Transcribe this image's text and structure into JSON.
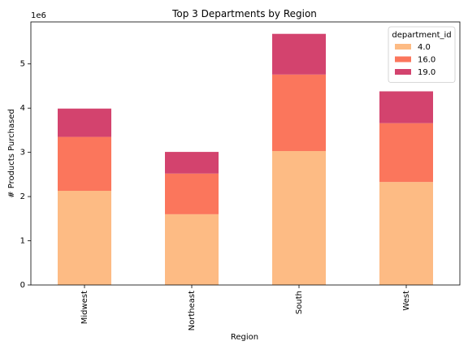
{
  "chart_data": {
    "type": "bar",
    "stacked": true,
    "title": "Top 3 Departments by Region",
    "xlabel": "Region",
    "ylabel": "# Products Purchased",
    "y_offset_label": "1e6",
    "y_scale": 1000000,
    "ylim": [
      0,
      5950000
    ],
    "yticks": [
      0,
      1,
      2,
      3,
      4,
      5
    ],
    "categories": [
      "Midwest",
      "Northeast",
      "South",
      "West"
    ],
    "series": [
      {
        "name": "4.0",
        "color": "#fdbb84",
        "values": [
          2130000,
          1600000,
          3030000,
          2330000
        ]
      },
      {
        "name": "16.0",
        "color": "#fb765c",
        "values": [
          1220000,
          920000,
          1730000,
          1330000
        ]
      },
      {
        "name": "19.0",
        "color": "#d3436e",
        "values": [
          640000,
          490000,
          920000,
          720000
        ]
      }
    ],
    "legend": {
      "title": "department_id",
      "placement": "top-right"
    },
    "grid": false
  }
}
